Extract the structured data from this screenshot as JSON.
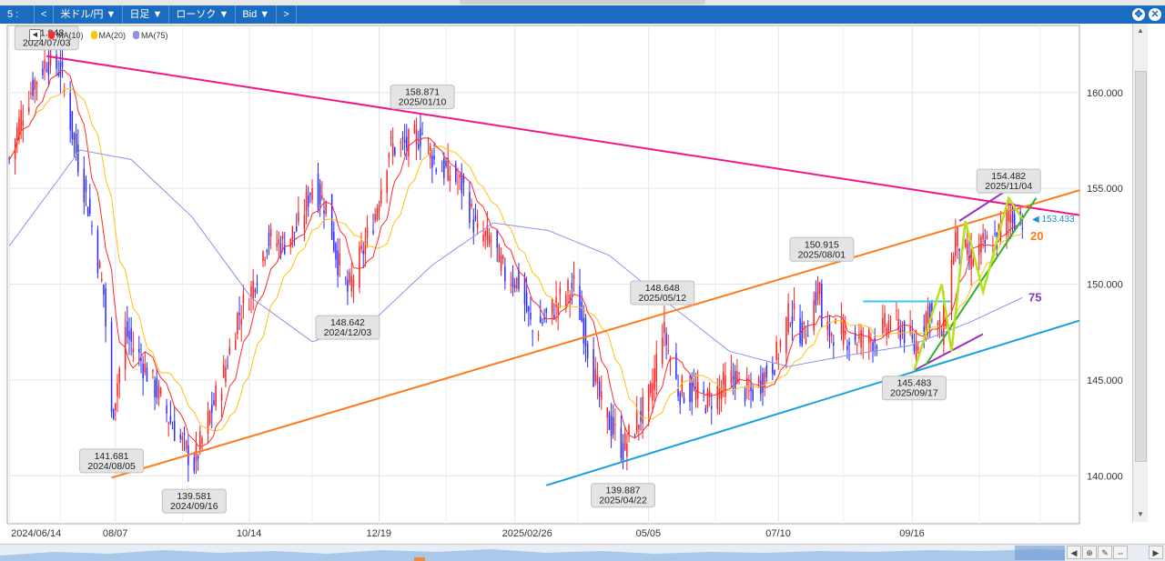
{
  "toolbar": {
    "channel": "5 :",
    "back": "<",
    "symbol": "米ドル/円 ▼",
    "timeframe": "日足 ▼",
    "chart_type": "ローソク ▼",
    "price_side": "Bid ▼",
    "more": ">"
  },
  "legend": [
    {
      "label": "MA(10)",
      "color": "#ff2a2a"
    },
    {
      "label": "MA(20)",
      "color": "#ffc20e"
    },
    {
      "label": "MA(75)",
      "color": "#8f8fe8"
    }
  ],
  "colors": {
    "up_candle": "#ff2020",
    "down_candle": "#2b2bff",
    "resistance_line": "#f0168a",
    "channel_line": "#ff7a1a",
    "support_line": "#1aa0e0",
    "wedge_line": "#9b30c0",
    "trend_green": "#2db32d",
    "zigzag": "#b6e01a",
    "horizontal_cyan": "#3cc8f0"
  },
  "chart_data": {
    "type": "candlestick",
    "instrument": "米ドル/円",
    "timeframe": "日足",
    "ylim": [
      137.5,
      163.5
    ],
    "yticks": [
      "140.000",
      "145.000",
      "150.000",
      "155.000",
      "160.000"
    ],
    "xticks": [
      "2024/06/14",
      "08/07",
      "10/14",
      "12/19",
      "2025/02/26",
      "05/05",
      "07/10",
      "09/16"
    ],
    "current_price": "◀ 153.433",
    "ma_labels": [
      "20",
      "75"
    ],
    "annotations": [
      {
        "price": "161.948",
        "date": "2024/07/03"
      },
      {
        "price": "141.681",
        "date": "2024/08/05"
      },
      {
        "price": "139.581",
        "date": "2024/09/16"
      },
      {
        "price": "148.642",
        "date": "2024/12/03"
      },
      {
        "price": "158.871",
        "date": "2025/01/10"
      },
      {
        "price": "139.887",
        "date": "2025/04/22"
      },
      {
        "price": "148.648",
        "date": "2025/05/12"
      },
      {
        "price": "150.915",
        "date": "2025/08/01"
      },
      {
        "price": "145.483",
        "date": "2025/09/17"
      },
      {
        "price": "154.482",
        "date": "2025/11/04"
      }
    ],
    "path_points": [
      [
        "2024/06/14",
        156.5
      ],
      [
        "2024/06/20",
        158.8
      ],
      [
        "2024/06/27",
        160.6
      ],
      [
        "2024/07/03",
        161.7
      ],
      [
        "2024/07/10",
        161.2
      ],
      [
        "2024/07/17",
        157.4
      ],
      [
        "2024/07/25",
        153.6
      ],
      [
        "2024/08/01",
        149.5
      ],
      [
        "2024/08/05",
        143.0
      ],
      [
        "2024/08/12",
        147.5
      ],
      [
        "2024/08/20",
        146.0
      ],
      [
        "2024/08/28",
        144.4
      ],
      [
        "2024/09/05",
        142.6
      ],
      [
        "2024/09/16",
        140.6
      ],
      [
        "2024/09/24",
        143.2
      ],
      [
        "2024/10/01",
        145.3
      ],
      [
        "2024/10/08",
        148.3
      ],
      [
        "2024/10/15",
        149.7
      ],
      [
        "2024/10/23",
        152.3
      ],
      [
        "2024/10/31",
        152.1
      ],
      [
        "2024/11/08",
        153.0
      ],
      [
        "2024/11/15",
        155.2
      ],
      [
        "2024/11/22",
        154.1
      ],
      [
        "2024/11/28",
        151.2
      ],
      [
        "2024/12/03",
        149.6
      ],
      [
        "2024/12/10",
        151.5
      ],
      [
        "2024/12/17",
        153.7
      ],
      [
        "2024/12/24",
        157.1
      ],
      [
        "2025/01/03",
        157.3
      ],
      [
        "2025/01/10",
        157.9
      ],
      [
        "2025/01/17",
        156.2
      ],
      [
        "2025/01/24",
        155.8
      ],
      [
        "2025/01/31",
        155.0
      ],
      [
        "2025/02/07",
        152.6
      ],
      [
        "2025/02/14",
        152.3
      ],
      [
        "2025/02/21",
        150.5
      ],
      [
        "2025/02/28",
        150.1
      ],
      [
        "2025/03/07",
        147.5
      ],
      [
        "2025/03/14",
        148.3
      ],
      [
        "2025/03/21",
        149.2
      ],
      [
        "2025/03/28",
        149.9
      ],
      [
        "2025/04/04",
        146.8
      ],
      [
        "2025/04/11",
        143.6
      ],
      [
        "2025/04/18",
        142.2
      ],
      [
        "2025/04/22",
        141.4
      ],
      [
        "2025/04/30",
        143.0
      ],
      [
        "2025/05/06",
        144.2
      ],
      [
        "2025/05/12",
        147.8
      ],
      [
        "2025/05/20",
        144.5
      ],
      [
        "2025/05/28",
        144.3
      ],
      [
        "2025/06/04",
        143.9
      ],
      [
        "2025/06/11",
        144.6
      ],
      [
        "2025/06/18",
        145.2
      ],
      [
        "2025/06/25",
        144.2
      ],
      [
        "2025/07/02",
        145.1
      ],
      [
        "2025/07/09",
        146.2
      ],
      [
        "2025/07/16",
        148.6
      ],
      [
        "2025/07/23",
        147.3
      ],
      [
        "2025/07/31",
        150.1
      ],
      [
        "2025/08/01",
        147.4
      ],
      [
        "2025/08/08",
        147.6
      ],
      [
        "2025/08/15",
        147.2
      ],
      [
        "2025/08/22",
        147.1
      ],
      [
        "2025/08/29",
        147.2
      ],
      [
        "2025/09/05",
        148.1
      ],
      [
        "2025/09/12",
        147.5
      ],
      [
        "2025/09/17",
        146.7
      ],
      [
        "2025/09/24",
        148.7
      ],
      [
        "2025/10/01",
        147.4
      ],
      [
        "2025/10/08",
        152.5
      ],
      [
        "2025/10/15",
        151.2
      ],
      [
        "2025/10/22",
        152.0
      ],
      [
        "2025/10/29",
        152.4
      ],
      [
        "2025/11/04",
        153.7
      ],
      [
        "2025/11/11",
        153.4
      ]
    ],
    "ma75_points": [
      [
        "2024/06/14",
        152.0
      ],
      [
        "2024/07/20",
        157.0
      ],
      [
        "2024/08/15",
        156.5
      ],
      [
        "2024/09/15",
        153.5
      ],
      [
        "2024/10/15",
        149.3
      ],
      [
        "2024/11/15",
        147.0
      ],
      [
        "2024/12/15",
        148.0
      ],
      [
        "2025/01/15",
        151.0
      ],
      [
        "2025/02/15",
        153.2
      ],
      [
        "2025/03/15",
        152.8
      ],
      [
        "2025/04/15",
        151.5
      ],
      [
        "2025/05/15",
        149.0
      ],
      [
        "2025/06/15",
        146.5
      ],
      [
        "2025/07/15",
        145.7
      ],
      [
        "2025/08/15",
        146.3
      ],
      [
        "2025/09/15",
        146.8
      ],
      [
        "2025/10/15",
        148.0
      ],
      [
        "2025/11/11",
        149.3
      ]
    ],
    "trendlines": [
      {
        "role": "resistance",
        "color_key": "resistance_line",
        "from": [
          "2024/07/03",
          161.9
        ],
        "to": [
          "2025/12/10",
          153.6
        ]
      },
      {
        "role": "upper-channel",
        "color_key": "channel_line",
        "from": [
          "2024/08/05",
          139.9
        ],
        "to": [
          "2025/12/10",
          154.9
        ]
      },
      {
        "role": "lower-support",
        "color_key": "support_line",
        "from": [
          "2025/03/14",
          139.5
        ],
        "to": [
          "2025/12/10",
          148.1
        ]
      },
      {
        "role": "wedge-upper",
        "color_key": "wedge_line",
        "from": [
          "2025/10/10",
          153.3
        ],
        "to": [
          "2025/11/06",
          155.1
        ]
      },
      {
        "role": "wedge-lower",
        "color_key": "wedge_line",
        "from": [
          "2025/09/17",
          145.5
        ],
        "to": [
          "2025/10/22",
          147.4
        ]
      },
      {
        "role": "trend",
        "color_key": "trend_green",
        "from": [
          "2025/09/23",
          145.8
        ],
        "to": [
          "2025/11/18",
          154.5
        ]
      },
      {
        "role": "cap",
        "color_key": "horizontal_cyan",
        "from": [
          "2025/08/22",
          149.1
        ],
        "to": [
          "2025/10/06",
          149.1
        ]
      }
    ],
    "zigzag": [
      [
        "2025/09/17",
        145.5
      ],
      [
        "2025/10/01",
        150.0
      ],
      [
        "2025/10/06",
        146.5
      ],
      [
        "2025/10/13",
        153.3
      ],
      [
        "2025/10/22",
        149.6
      ],
      [
        "2025/11/04",
        154.5
      ],
      [
        "2025/11/11",
        153.4
      ]
    ]
  }
}
